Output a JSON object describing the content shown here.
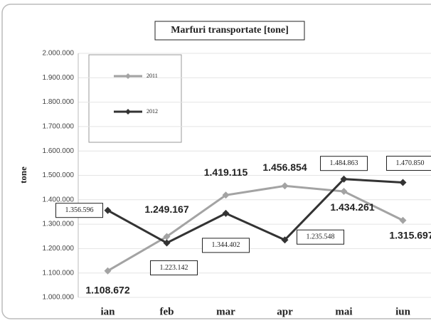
{
  "chart_data": {
    "type": "line",
    "title": "Marfuri transportate [tone]",
    "y_label": "tone",
    "categories": [
      "ian",
      "feb",
      "mar",
      "apr",
      "mai",
      "iun"
    ],
    "series": [
      {
        "name": "2011",
        "color": "#a3a3a3",
        "values": [
          1108672,
          1249167,
          1419115,
          1456854,
          1434261,
          1315697
        ],
        "value_labels": [
          "1.108.672",
          "1.249.167",
          "1.419.115",
          "1.456.854",
          "1.434.261",
          "1.315.697"
        ]
      },
      {
        "name": "2012",
        "color": "#333333",
        "values": [
          1356596,
          1223142,
          1344402,
          1235548,
          1484863,
          1470850
        ],
        "value_labels": [
          "1.356.596",
          "1.223.142",
          "1.344.402",
          "1.235.548",
          "1.484.863",
          "1.470.850"
        ]
      }
    ],
    "ylim": [
      1000000,
      2000000
    ],
    "yticks": [
      {
        "value": 1000000,
        "label": "1.000.000"
      },
      {
        "value": 1100000,
        "label": "1.100.000"
      },
      {
        "value": 1200000,
        "label": "1.200.000"
      },
      {
        "value": 1300000,
        "label": "1.300.000"
      },
      {
        "value": 1400000,
        "label": "1.400.000"
      },
      {
        "value": 1500000,
        "label": "1.500.000"
      },
      {
        "value": 1600000,
        "label": "1.600.000"
      },
      {
        "value": 1700000,
        "label": "1.700.000"
      },
      {
        "value": 1800000,
        "label": "1.800.000"
      },
      {
        "value": 1900000,
        "label": "1.900.000"
      },
      {
        "value": 2000000,
        "label": "2.000.000"
      }
    ],
    "legend": "upper left"
  }
}
